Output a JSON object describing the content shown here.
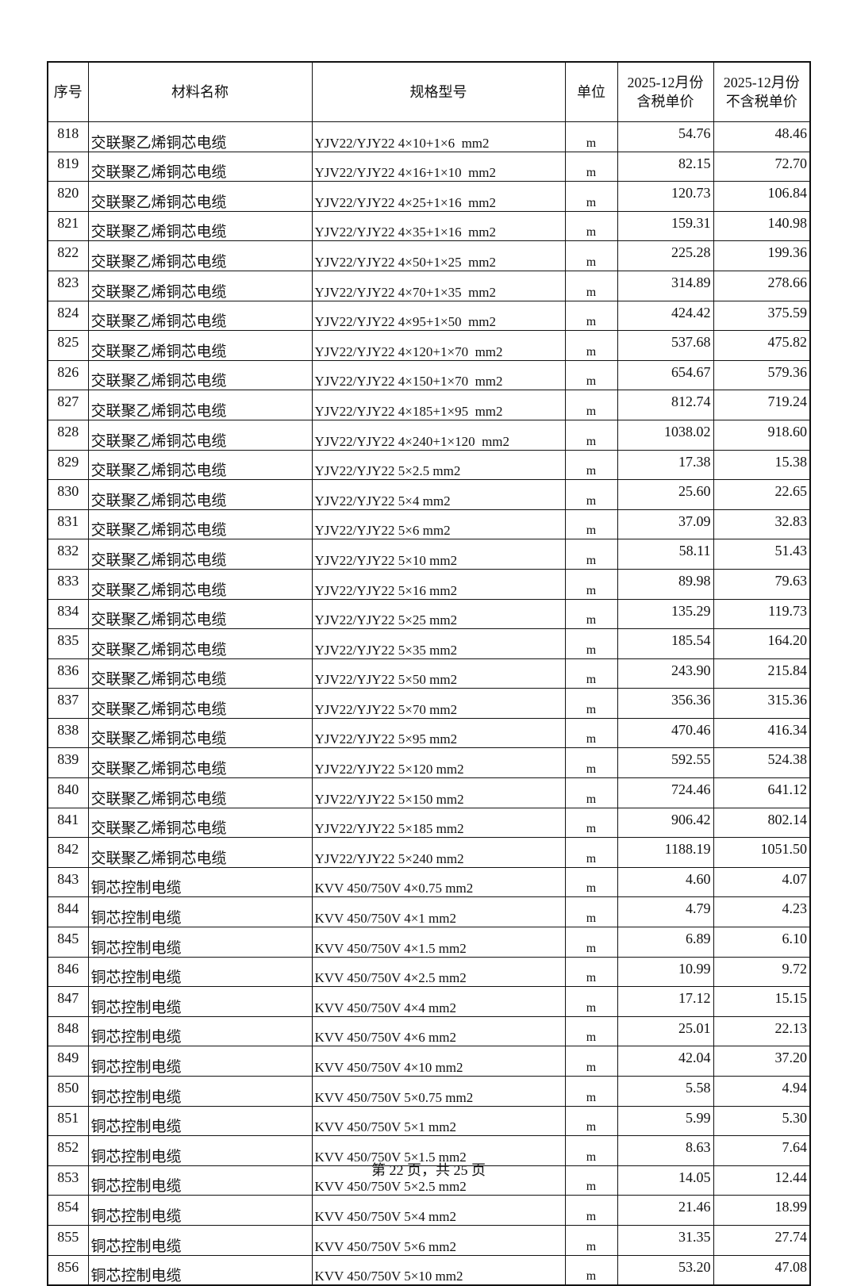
{
  "table": {
    "header": [
      "序号",
      "材料名称",
      "规格型号",
      "单位",
      "2025-12月份\n含税单价",
      "2025-12月份\n不含税单价"
    ],
    "rows": [
      [
        "818",
        "交联聚乙烯铜芯电缆",
        "YJV22/YJY22 4×10+1×6  mm2",
        "m",
        "54.76",
        "48.46"
      ],
      [
        "819",
        "交联聚乙烯铜芯电缆",
        "YJV22/YJY22 4×16+1×10  mm2",
        "m",
        "82.15",
        "72.70"
      ],
      [
        "820",
        "交联聚乙烯铜芯电缆",
        "YJV22/YJY22 4×25+1×16  mm2",
        "m",
        "120.73",
        "106.84"
      ],
      [
        "821",
        "交联聚乙烯铜芯电缆",
        "YJV22/YJY22 4×35+1×16  mm2",
        "m",
        "159.31",
        "140.98"
      ],
      [
        "822",
        "交联聚乙烯铜芯电缆",
        "YJV22/YJY22 4×50+1×25  mm2",
        "m",
        "225.28",
        "199.36"
      ],
      [
        "823",
        "交联聚乙烯铜芯电缆",
        "YJV22/YJY22 4×70+1×35  mm2",
        "m",
        "314.89",
        "278.66"
      ],
      [
        "824",
        "交联聚乙烯铜芯电缆",
        "YJV22/YJY22 4×95+1×50  mm2",
        "m",
        "424.42",
        "375.59"
      ],
      [
        "825",
        "交联聚乙烯铜芯电缆",
        "YJV22/YJY22 4×120+1×70  mm2",
        "m",
        "537.68",
        "475.82"
      ],
      [
        "826",
        "交联聚乙烯铜芯电缆",
        "YJV22/YJY22 4×150+1×70  mm2",
        "m",
        "654.67",
        "579.36"
      ],
      [
        "827",
        "交联聚乙烯铜芯电缆",
        "YJV22/YJY22 4×185+1×95  mm2",
        "m",
        "812.74",
        "719.24"
      ],
      [
        "828",
        "交联聚乙烯铜芯电缆",
        "YJV22/YJY22 4×240+1×120  mm2",
        "m",
        "1038.02",
        "918.60"
      ],
      [
        "829",
        "交联聚乙烯铜芯电缆",
        "YJV22/YJY22 5×2.5 mm2",
        "m",
        "17.38",
        "15.38"
      ],
      [
        "830",
        "交联聚乙烯铜芯电缆",
        "YJV22/YJY22 5×4 mm2",
        "m",
        "25.60",
        "22.65"
      ],
      [
        "831",
        "交联聚乙烯铜芯电缆",
        "YJV22/YJY22 5×6 mm2",
        "m",
        "37.09",
        "32.83"
      ],
      [
        "832",
        "交联聚乙烯铜芯电缆",
        "YJV22/YJY22 5×10 mm2",
        "m",
        "58.11",
        "51.43"
      ],
      [
        "833",
        "交联聚乙烯铜芯电缆",
        "YJV22/YJY22 5×16 mm2",
        "m",
        "89.98",
        "79.63"
      ],
      [
        "834",
        "交联聚乙烯铜芯电缆",
        "YJV22/YJY22 5×25 mm2",
        "m",
        "135.29",
        "119.73"
      ],
      [
        "835",
        "交联聚乙烯铜芯电缆",
        "YJV22/YJY22 5×35 mm2",
        "m",
        "185.54",
        "164.20"
      ],
      [
        "836",
        "交联聚乙烯铜芯电缆",
        "YJV22/YJY22 5×50 mm2",
        "m",
        "243.90",
        "215.84"
      ],
      [
        "837",
        "交联聚乙烯铜芯电缆",
        "YJV22/YJY22 5×70 mm2",
        "m",
        "356.36",
        "315.36"
      ],
      [
        "838",
        "交联聚乙烯铜芯电缆",
        "YJV22/YJY22 5×95 mm2",
        "m",
        "470.46",
        "416.34"
      ],
      [
        "839",
        "交联聚乙烯铜芯电缆",
        "YJV22/YJY22 5×120 mm2",
        "m",
        "592.55",
        "524.38"
      ],
      [
        "840",
        "交联聚乙烯铜芯电缆",
        "YJV22/YJY22 5×150 mm2",
        "m",
        "724.46",
        "641.12"
      ],
      [
        "841",
        "交联聚乙烯铜芯电缆",
        "YJV22/YJY22 5×185 mm2",
        "m",
        "906.42",
        "802.14"
      ],
      [
        "842",
        "交联聚乙烯铜芯电缆",
        "YJV22/YJY22 5×240 mm2",
        "m",
        "1188.19",
        "1051.50"
      ],
      [
        "843",
        "铜芯控制电缆",
        "KVV 450/750V 4×0.75 mm2",
        "m",
        "4.60",
        "4.07"
      ],
      [
        "844",
        "铜芯控制电缆",
        "KVV 450/750V 4×1 mm2",
        "m",
        "4.79",
        "4.23"
      ],
      [
        "845",
        "铜芯控制电缆",
        "KVV 450/750V 4×1.5 mm2",
        "m",
        "6.89",
        "6.10"
      ],
      [
        "846",
        "铜芯控制电缆",
        "KVV 450/750V 4×2.5 mm2",
        "m",
        "10.99",
        "9.72"
      ],
      [
        "847",
        "铜芯控制电缆",
        "KVV 450/750V 4×4 mm2",
        "m",
        "17.12",
        "15.15"
      ],
      [
        "848",
        "铜芯控制电缆",
        "KVV 450/750V 4×6 mm2",
        "m",
        "25.01",
        "22.13"
      ],
      [
        "849",
        "铜芯控制电缆",
        "KVV 450/750V 4×10 mm2",
        "m",
        "42.04",
        "37.20"
      ],
      [
        "850",
        "铜芯控制电缆",
        "KVV 450/750V 5×0.75 mm2",
        "m",
        "5.58",
        "4.94"
      ],
      [
        "851",
        "铜芯控制电缆",
        "KVV 450/750V 5×1 mm2",
        "m",
        "5.99",
        "5.30"
      ],
      [
        "852",
        "铜芯控制电缆",
        "KVV 450/750V 5×1.5 mm2",
        "m",
        "8.63",
        "7.64"
      ],
      [
        "853",
        "铜芯控制电缆",
        "KVV 450/750V 5×2.5 mm2",
        "m",
        "14.05",
        "12.44"
      ],
      [
        "854",
        "铜芯控制电缆",
        "KVV 450/750V 5×4 mm2",
        "m",
        "21.46",
        "18.99"
      ],
      [
        "855",
        "铜芯控制电缆",
        "KVV 450/750V 5×6 mm2",
        "m",
        "31.35",
        "27.74"
      ],
      [
        "856",
        "铜芯控制电缆",
        "KVV 450/750V 5×10 mm2",
        "m",
        "53.20",
        "47.08"
      ]
    ]
  },
  "footer": "第 22 页，共 25 页"
}
